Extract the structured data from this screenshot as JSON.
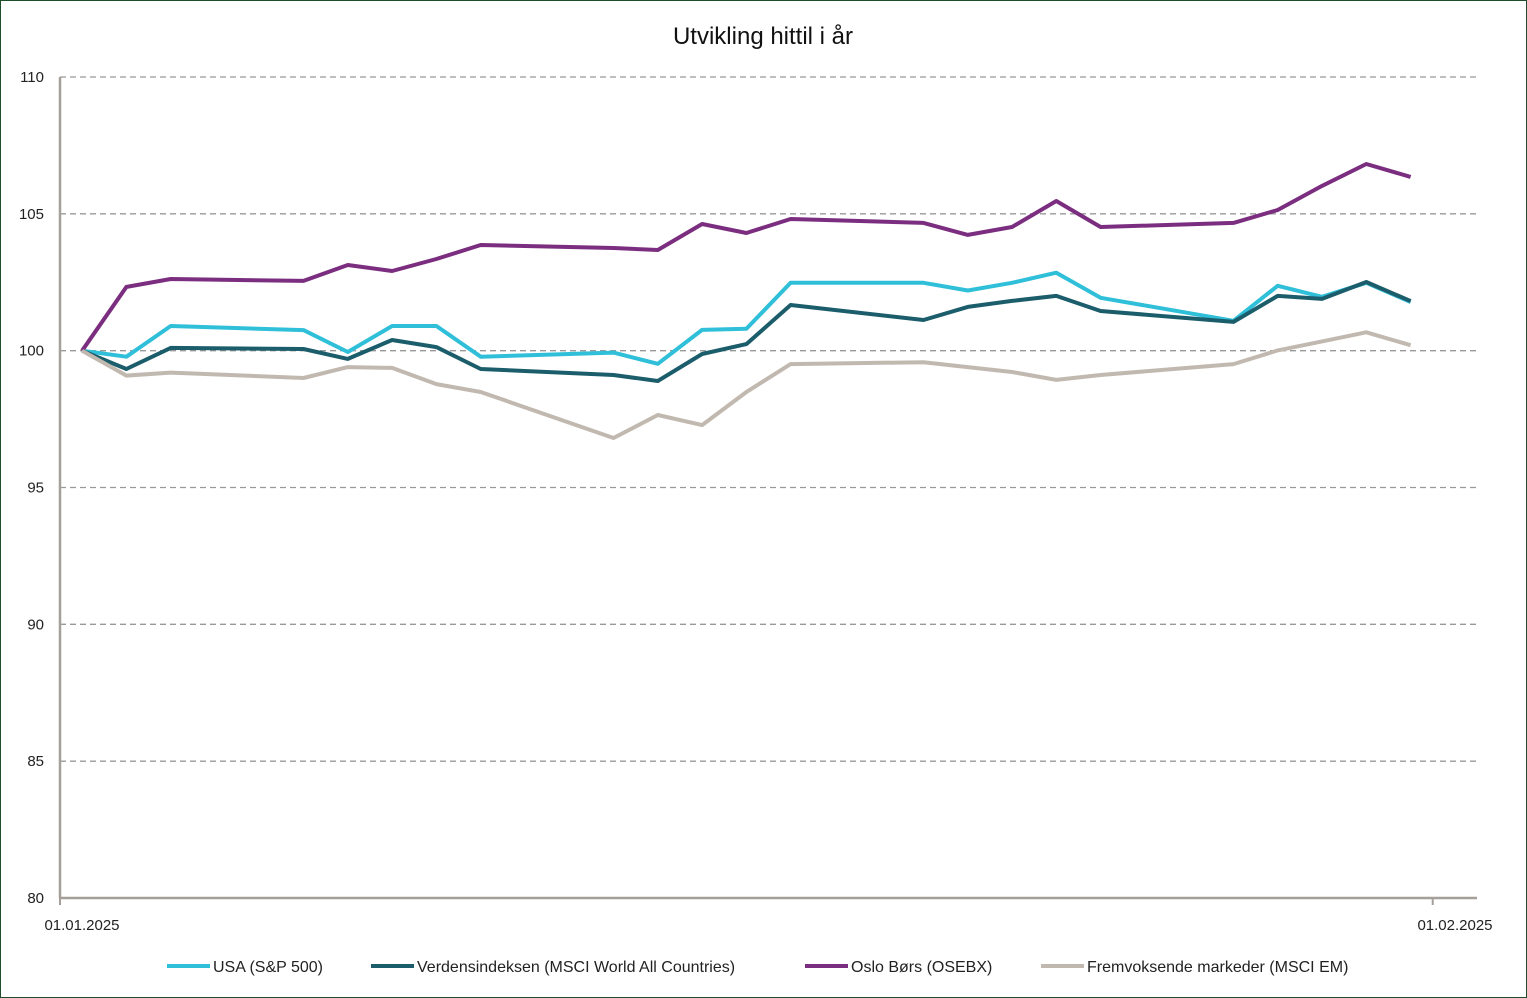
{
  "chart_data": {
    "type": "line",
    "title": "Utvikling hittil i år",
    "xlabel": "",
    "ylabel": "",
    "ylim": [
      80,
      110
    ],
    "yticks": [
      "80",
      "85",
      "90",
      "95",
      "100",
      "105",
      "110"
    ],
    "xticks": [
      "01.01.2025",
      "01.02.2025"
    ],
    "grid": true,
    "legend_position": "bottom",
    "x": [
      "2025-01-01",
      "2025-01-02",
      "2025-01-03",
      "2025-01-06",
      "2025-01-07",
      "2025-01-08",
      "2025-01-09",
      "2025-01-10",
      "2025-01-13",
      "2025-01-14",
      "2025-01-15",
      "2025-01-16",
      "2025-01-17",
      "2025-01-20",
      "2025-01-21",
      "2025-01-22",
      "2025-01-23",
      "2025-01-24",
      "2025-01-27",
      "2025-01-28",
      "2025-01-29",
      "2025-01-30",
      "2025-01-31"
    ],
    "series": [
      {
        "name": "USA (S&P 500)",
        "color": "#2fbfd9",
        "values": [
          100,
          99.78,
          100.9,
          100.75,
          99.95,
          100.9,
          100.9,
          99.78,
          99.93,
          99.52,
          100.76,
          100.8,
          102.48,
          102.48,
          102.2,
          102.48,
          102.85,
          101.93,
          101.09,
          102.37,
          101.97,
          102.48,
          101.78
        ]
      },
      {
        "name": "Verdensindeksen (MSCI World All Countries)",
        "color": "#1b5d6b",
        "values": [
          100,
          99.33,
          100.1,
          100.06,
          99.7,
          100.39,
          100.13,
          99.33,
          99.11,
          98.89,
          99.88,
          100.24,
          101.67,
          101.12,
          101.6,
          101.82,
          102.0,
          101.45,
          101.05,
          102.0,
          101.89,
          102.51,
          101.81
        ]
      },
      {
        "name": "Oslo Børs (OSEBX)",
        "color": "#7b2d7f",
        "values": [
          100,
          102.33,
          102.62,
          102.55,
          103.13,
          102.91,
          103.35,
          103.86,
          103.75,
          103.68,
          104.63,
          104.3,
          104.81,
          104.67,
          104.23,
          104.52,
          105.47,
          104.52,
          104.67,
          105.14,
          106.02,
          106.82,
          106.35
        ]
      },
      {
        "name": "Fremvoksende markeder (MSCI EM)",
        "color": "#c1b9b0",
        "values": [
          100,
          99.09,
          99.2,
          99.0,
          99.4,
          99.37,
          98.78,
          98.49,
          96.81,
          97.65,
          97.28,
          98.49,
          99.51,
          99.58,
          99.4,
          99.22,
          98.93,
          99.11,
          99.51,
          100.01,
          100.34,
          100.67,
          100.2
        ]
      }
    ]
  }
}
